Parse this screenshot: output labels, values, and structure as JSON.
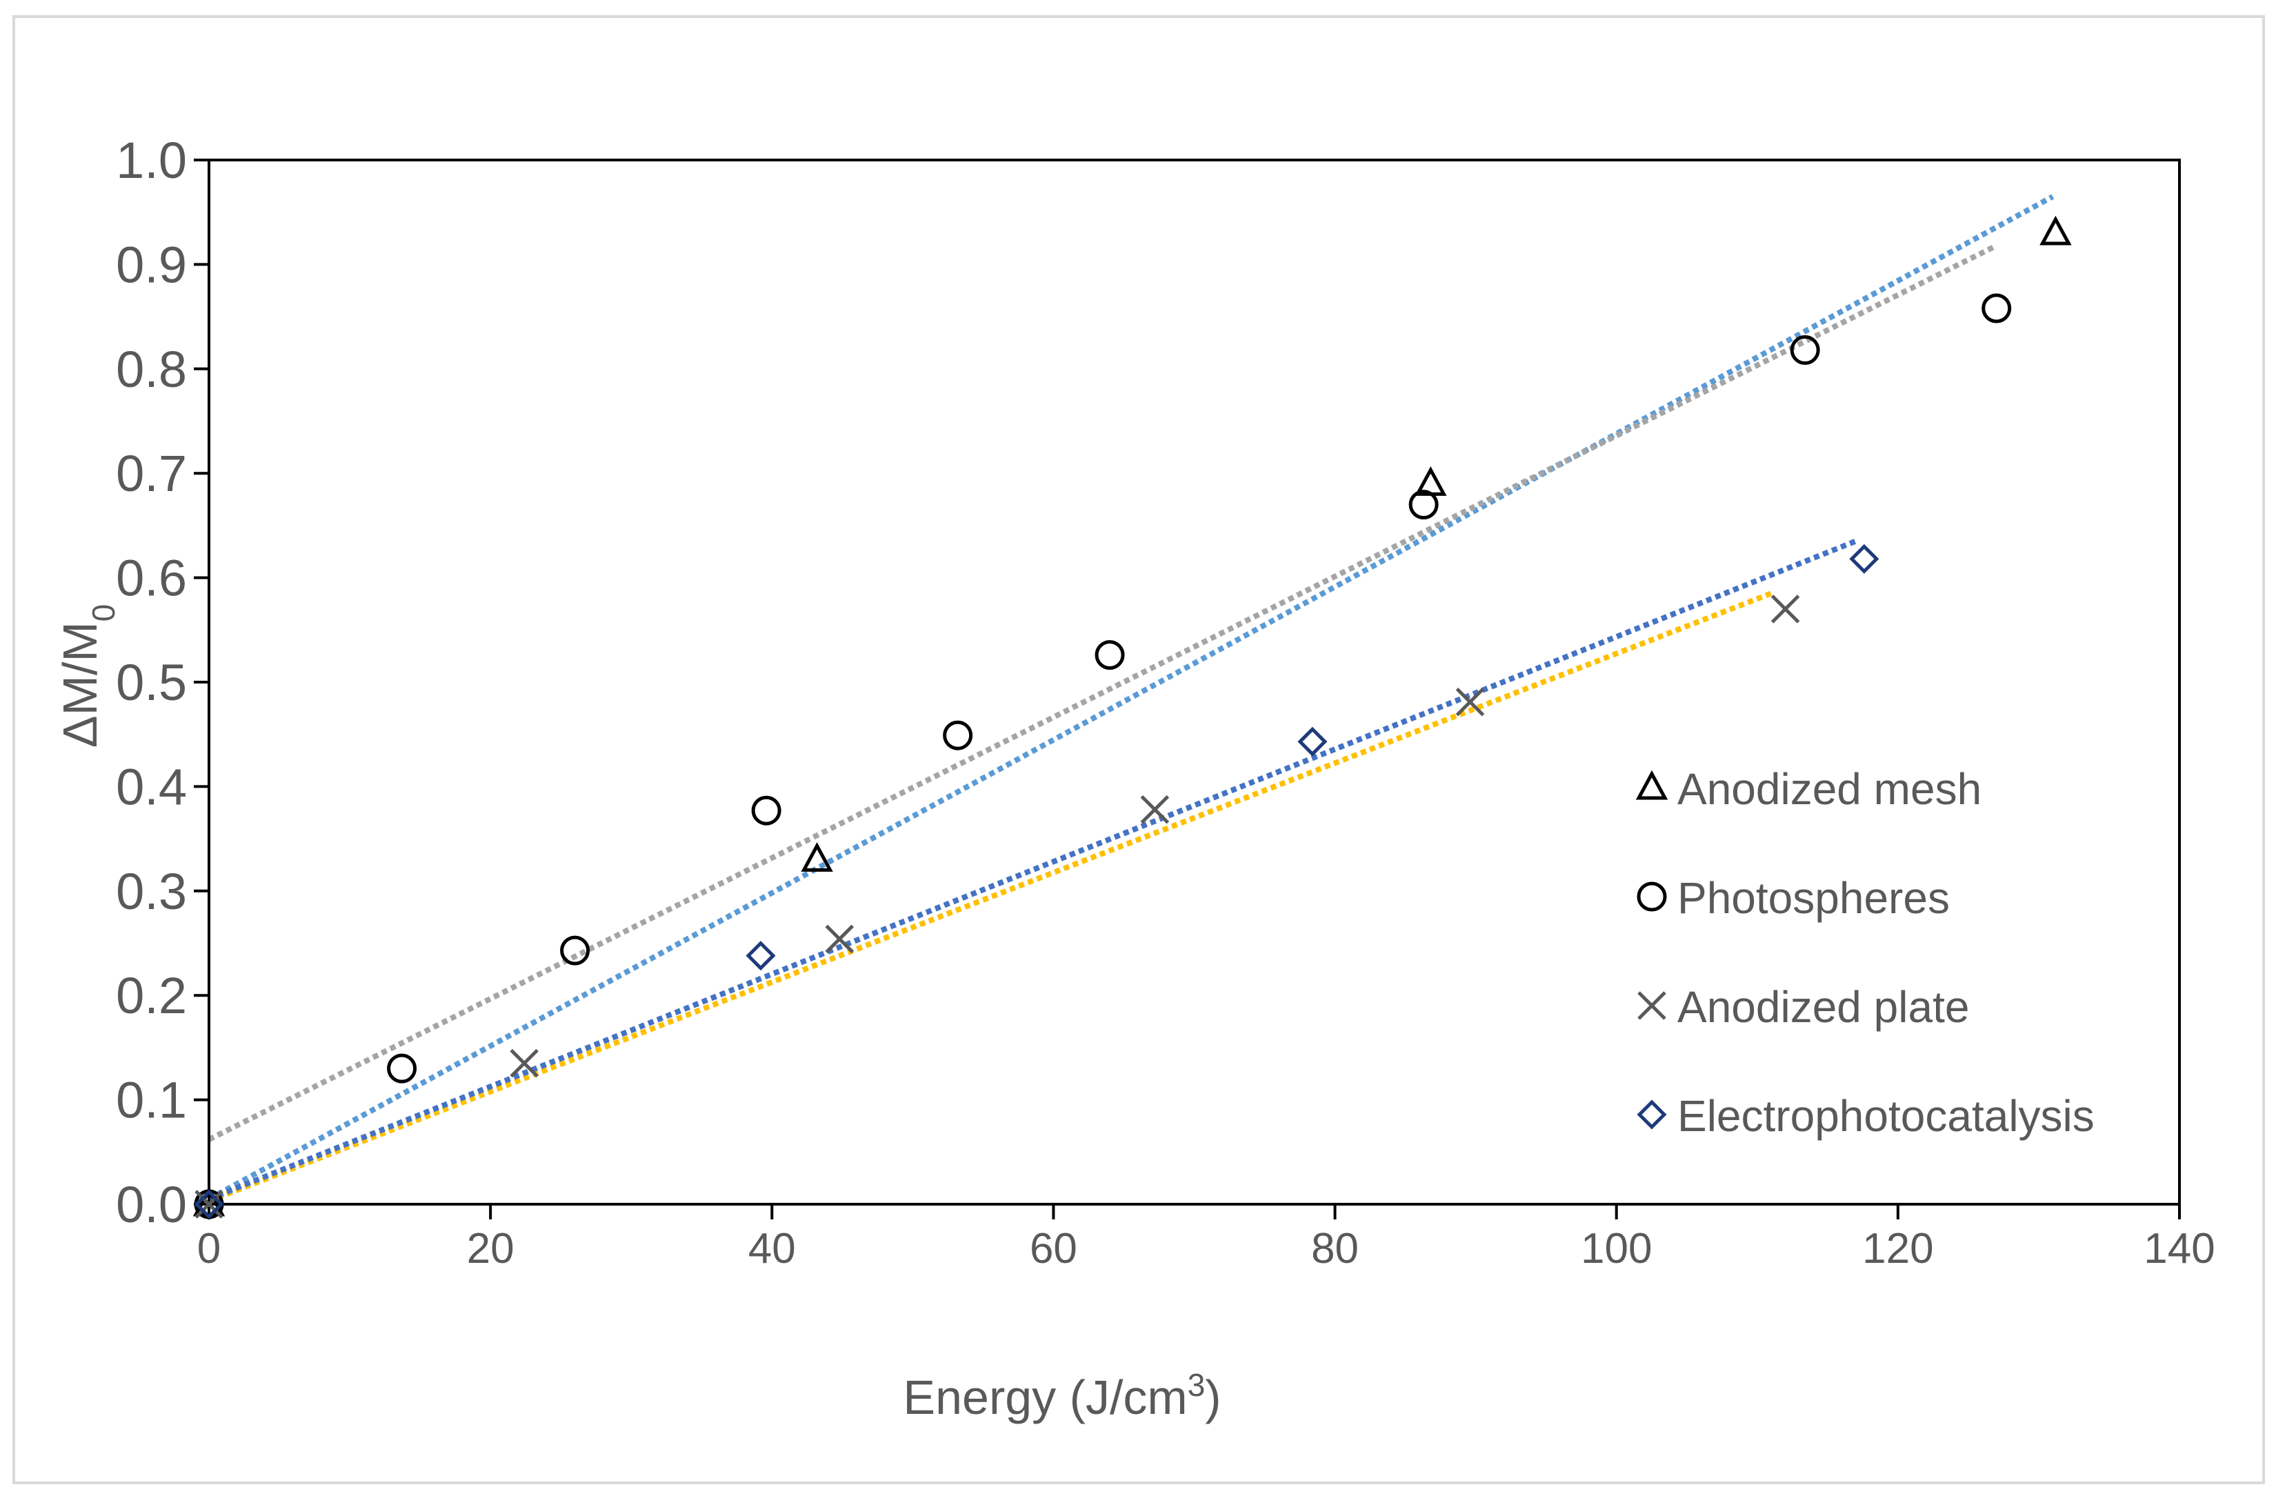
{
  "chart_data": {
    "type": "scatter",
    "title": "",
    "xlabel": "Energy (J/cm",
    "xlabel_sup": "3",
    "xlabel_close": ")",
    "ylabel": "ΔM/M",
    "ylabel_sub": "0",
    "xlim": [
      0,
      140
    ],
    "ylim": [
      0,
      1.0
    ],
    "x_ticks": [
      0,
      20,
      40,
      60,
      80,
      100,
      120,
      140
    ],
    "x_tick_labels": [
      "0",
      "20",
      "40",
      "60",
      "80",
      "100",
      "120",
      "140"
    ],
    "y_ticks": [
      0,
      0.1,
      0.2,
      0.3,
      0.4,
      0.5,
      0.6,
      0.7,
      0.8,
      0.9,
      1.0
    ],
    "y_tick_labels": [
      "0.0",
      "0.1",
      "0.2",
      "0.3",
      "0.4",
      "0.5",
      "0.6",
      "0.7",
      "0.8",
      "0.9",
      "1.0"
    ],
    "grid": false,
    "legend_position": "right",
    "series": [
      {
        "name": "Anodized mesh",
        "marker": "triangle",
        "color": "#000000",
        "points": [
          [
            0,
            0
          ],
          [
            43.2,
            0.33
          ],
          [
            86.8,
            0.69
          ],
          [
            131.2,
            0.93
          ]
        ],
        "trendline": {
          "x_start": 0,
          "y_start": 0.005,
          "x_end": 131,
          "y_end": 0.965,
          "color": "#5b9bd5"
        }
      },
      {
        "name": "Photospheres",
        "marker": "circle",
        "color": "#000000",
        "points": [
          [
            0,
            0
          ],
          [
            13.7,
            0.13
          ],
          [
            26,
            0.243
          ],
          [
            39.6,
            0.377
          ],
          [
            53.2,
            0.449
          ],
          [
            64,
            0.526
          ],
          [
            86.3,
            0.67
          ],
          [
            113.4,
            0.818
          ],
          [
            127,
            0.858
          ]
        ],
        "trendline": {
          "x_start": 0,
          "y_start": 0.062,
          "x_end": 127,
          "y_end": 0.918,
          "color": "#a5a5a5"
        }
      },
      {
        "name": "Anodized plate",
        "marker": "x",
        "color": "#595959",
        "points": [
          [
            0,
            0
          ],
          [
            22.4,
            0.135
          ],
          [
            44.8,
            0.254
          ],
          [
            67.2,
            0.378
          ],
          [
            89.6,
            0.481
          ],
          [
            112,
            0.57
          ]
        ],
        "trendline": {
          "x_start": 0,
          "y_start": 0.003,
          "x_end": 111,
          "y_end": 0.585,
          "color": "#ffc000"
        }
      },
      {
        "name": "Electrophotocatalysis",
        "marker": "diamond",
        "color": "#1f3a7a",
        "points": [
          [
            0,
            0
          ],
          [
            39.2,
            0.238
          ],
          [
            78.4,
            0.443
          ],
          [
            117.6,
            0.618
          ]
        ],
        "trendline": {
          "x_start": 0,
          "y_start": 0.005,
          "x_end": 117,
          "y_end": 0.635,
          "color": "#4472c4"
        }
      }
    ]
  }
}
